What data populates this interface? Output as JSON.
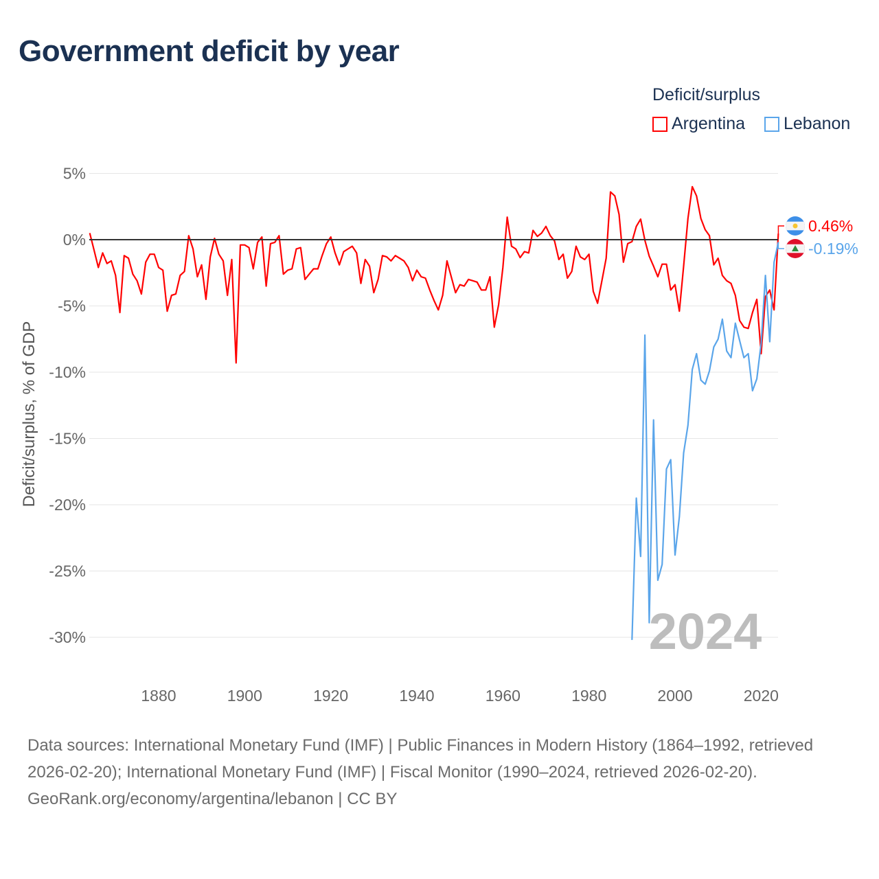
{
  "title": "Government deficit by year",
  "legend": {
    "title": "Deficit/surplus",
    "entries": [
      {
        "name": "Argentina",
        "color": "#ff0000"
      },
      {
        "name": "Lebanon",
        "color": "#5aa5ea"
      }
    ]
  },
  "year_watermark": "2024",
  "footer": {
    "sources": "Data sources: International Monetary Fund (IMF) | Public Finances in Modern History (1864–1992, retrieved 2026-02-20); International Monetary Fund (IMF) | Fiscal Monitor (1990–2024, retrieved 2026-02-20).",
    "credit": "GeoRank.org/economy/argentina/lebanon | CC BY"
  },
  "chart_data": {
    "type": "line",
    "title": "Government deficit by year",
    "xlabel": "",
    "ylabel": "Deficit/surplus, % of GDP",
    "xlim": [
      1864,
      2024
    ],
    "ylim": [
      -32,
      6
    ],
    "x_ticks": [
      1880,
      1900,
      1920,
      1940,
      1960,
      1980,
      2000,
      2020
    ],
    "y_ticks": [
      5,
      0,
      -5,
      -10,
      -15,
      -20,
      -25,
      -30
    ],
    "y_tick_labels": [
      "5%",
      "0%",
      "-5%",
      "-10%",
      "-15%",
      "-20%",
      "-25%",
      "-30%"
    ],
    "legend_position": "top-right",
    "series": [
      {
        "name": "Argentina",
        "color": "#ff0000",
        "end_label": "0.46%",
        "start_year": 1864,
        "values": [
          0.5,
          -0.8,
          -2.1,
          -1.0,
          -1.8,
          -1.6,
          -2.7,
          -5.5,
          -1.2,
          -1.4,
          -2.6,
          -3.1,
          -4.1,
          -1.7,
          -1.1,
          -1.1,
          -2.1,
          -2.3,
          -5.4,
          -4.2,
          -4.1,
          -2.7,
          -2.4,
          0.3,
          -0.7,
          -2.8,
          -1.9,
          -4.5,
          -1.3,
          0.1,
          -1.1,
          -1.6,
          -4.2,
          -1.5,
          -9.3,
          -0.4,
          -0.4,
          -0.6,
          -2.2,
          -0.2,
          0.2,
          -3.5,
          -0.3,
          -0.2,
          0.3,
          -2.6,
          -2.3,
          -2.2,
          -0.7,
          -0.6,
          -3.0,
          -2.6,
          -2.2,
          -2.2,
          -1.2,
          -0.3,
          0.2,
          -1.0,
          -1.9,
          -0.9,
          -0.7,
          -0.5,
          -1.0,
          -3.3,
          -1.5,
          -2.0,
          -4.0,
          -3.0,
          -1.2,
          -1.3,
          -1.6,
          -1.2,
          -1.4,
          -1.6,
          -2.1,
          -3.1,
          -2.3,
          -2.8,
          -2.9,
          -3.8,
          -4.6,
          -5.3,
          -4.2,
          -1.6,
          -2.8,
          -4.0,
          -3.4,
          -3.5,
          -3.0,
          -3.1,
          -3.2,
          -3.8,
          -3.8,
          -2.8,
          -6.6,
          -4.9,
          -2.1,
          1.7,
          -0.5,
          -0.7,
          -1.35,
          -0.9,
          -1.0,
          0.7,
          0.25,
          0.5,
          1.0,
          0.3,
          -0.1,
          -1.5,
          -1.1,
          -2.9,
          -2.4,
          -0.5,
          -1.3,
          -1.5,
          -1.1,
          -3.9,
          -4.8,
          -3.1,
          -1.4,
          3.6,
          3.3,
          1.9,
          -1.7,
          -0.3,
          -0.15,
          1.0,
          1.55,
          -0.05,
          -1.25,
          -2.0,
          -2.8,
          -1.85,
          -1.85,
          -3.8,
          -3.4,
          -5.4,
          -2.0,
          1.6,
          4.0,
          3.3,
          1.6,
          0.75,
          0.3,
          -1.9,
          -1.4,
          -2.7,
          -3.1,
          -3.3,
          -4.2,
          -6.1,
          -6.6,
          -6.7,
          -5.5,
          -4.5,
          -8.6,
          -4.3,
          -3.8,
          -5.3,
          0.46
        ]
      },
      {
        "name": "Lebanon",
        "color": "#5aa5ea",
        "end_label": "-0.19%",
        "start_year": 1990,
        "values": [
          -30.2,
          -19.5,
          -23.9,
          -7.2,
          -28.9,
          -13.6,
          -25.7,
          -24.5,
          -17.3,
          -16.6,
          -23.8,
          -20.9,
          -16.1,
          -14.0,
          -9.8,
          -8.6,
          -10.6,
          -10.9,
          -9.9,
          -8.1,
          -7.5,
          -6.0,
          -8.4,
          -8.9,
          -6.3,
          -7.6,
          -8.9,
          -8.6,
          -11.4,
          -10.5,
          -7.8,
          -2.7,
          -7.7,
          -1.7,
          -0.19
        ]
      }
    ]
  }
}
